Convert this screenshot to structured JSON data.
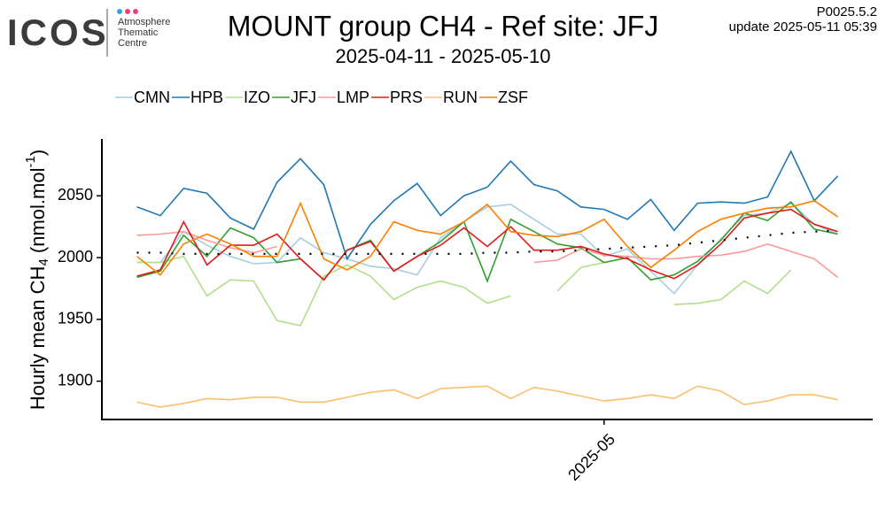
{
  "logo": {
    "name": "ICOS",
    "lines": [
      "Atmosphere",
      "Thematic",
      "Centre"
    ]
  },
  "version": "P0025.5.2",
  "update": "update  2025-05-11 05:39",
  "chart_data": {
    "type": "line",
    "title": "MOUNT group CH4 - Ref site: JFJ",
    "subtitle": "2025-04-11 - 2025-05-10",
    "ylabel": {
      "main": "Hourly mean  CH",
      "sub": "4",
      "unit": " (nmol.mol",
      "sup": "-1",
      "close": ")"
    },
    "x": [
      "2025-04-11",
      "2025-04-12",
      "2025-04-13",
      "2025-04-14",
      "2025-04-15",
      "2025-04-16",
      "2025-04-17",
      "2025-04-18",
      "2025-04-19",
      "2025-04-20",
      "2025-04-21",
      "2025-04-22",
      "2025-04-23",
      "2025-04-24",
      "2025-04-25",
      "2025-04-26",
      "2025-04-27",
      "2025-04-28",
      "2025-04-29",
      "2025-04-30",
      "2025-05-01",
      "2025-05-02",
      "2025-05-03",
      "2025-05-04",
      "2025-05-05",
      "2025-05-06",
      "2025-05-07",
      "2025-05-08",
      "2025-05-09",
      "2025-05-10",
      "2025-05-11"
    ],
    "xlim": [
      "2025-04-09T12:00Z",
      "2025-05-12T12:00Z"
    ],
    "xticks": [
      {
        "value": "2025-05-01",
        "label": "2025-05"
      }
    ],
    "ylim": [
      1869,
      2096
    ],
    "yticks": [
      1900,
      1950,
      2000,
      2050
    ],
    "grid": false,
    "legend": "top",
    "series": [
      {
        "name": "CMN",
        "color": "#a6cee3",
        "values": [
          1996,
          1996,
          2021,
          2010,
          2001,
          1995,
          1996,
          2016,
          2004,
          1999,
          1993,
          1991,
          1986,
          2016,
          2029,
          2041,
          2043,
          2031,
          2019,
          2019,
          2001,
          2007,
          1989,
          1971,
          1994,
          2015,
          2034,
          2036,
          2044,
          2027,
          2019
        ]
      },
      {
        "name": "HPB",
        "color": "#1f78b4",
        "values": [
          2041,
          2034,
          2056,
          2052,
          2032,
          2023,
          2061,
          2080,
          2059,
          1999,
          2027,
          2046,
          2060,
          2034,
          2050,
          2057,
          2078,
          2059,
          2054,
          2041,
          2039,
          2031,
          2047,
          2022,
          2044,
          2045,
          2044,
          2049,
          2086,
          2046,
          2066
        ]
      },
      {
        "name": "IZO",
        "color": "#b2df8a",
        "values": [
          1996,
          1996,
          2001,
          1969,
          1982,
          1981,
          1949,
          1945,
          1985,
          1994,
          1985,
          1966,
          1976,
          1981,
          1976,
          1963,
          1969,
          null,
          1973,
          1992,
          1996,
          null,
          null,
          1962,
          1963,
          1966,
          1981,
          1971,
          1990,
          null,
          null
        ]
      },
      {
        "name": "JFJ",
        "color": "#33a02c",
        "values": [
          1984,
          1989,
          2018,
          2001,
          2024,
          2016,
          1996,
          1999,
          1982,
          2006,
          2014,
          1989,
          2001,
          2013,
          2029,
          1981,
          2031,
          2021,
          2011,
          2008,
          1996,
          2000,
          1982,
          1986,
          1997,
          2014,
          2036,
          2030,
          2045,
          2023,
          2019
        ]
      },
      {
        "name": "LMP",
        "color": "#fb9a99",
        "values": [
          2018,
          2019,
          2021,
          2014,
          2008,
          2004,
          2009,
          null,
          null,
          null,
          null,
          null,
          null,
          null,
          null,
          null,
          null,
          1996,
          1998,
          2007,
          2002,
          2001,
          1999,
          1999,
          2001,
          2002,
          2005,
          2011,
          2005,
          1999,
          1984
        ]
      },
      {
        "name": "PRS",
        "color": "#e31a1c",
        "values": [
          1985,
          1990,
          2029,
          1994,
          2010,
          2010,
          2019,
          1999,
          1982,
          2006,
          2013,
          1989,
          2001,
          2010,
          2024,
          2009,
          2025,
          2006,
          2006,
          2009,
          2003,
          1999,
          1990,
          1983,
          1994,
          2011,
          2032,
          2036,
          2039,
          2027,
          2021
        ]
      },
      {
        "name": "RUN",
        "color": "#fdbf6f",
        "values": [
          1883,
          1879,
          1882,
          1886,
          1885,
          1887,
          1887,
          1883,
          1883,
          1887,
          1891,
          1893,
          1886,
          1894,
          1895,
          1896,
          1886,
          1895,
          1892,
          1888,
          1884,
          1886,
          1889,
          1886,
          1896,
          1892,
          1881,
          1884,
          1889,
          1889,
          1885
        ]
      },
      {
        "name": "ZSF",
        "color": "#ff7f00",
        "values": [
          2001,
          1986,
          2011,
          2019,
          2011,
          2001,
          2001,
          2044,
          1999,
          1990,
          2001,
          2029,
          2022,
          2019,
          2029,
          2043,
          2021,
          2018,
          2017,
          2021,
          2031,
          2009,
          1992,
          2006,
          2021,
          2031,
          2036,
          2040,
          2041,
          2046,
          2033
        ]
      },
      {
        "color": "#000000",
        "style": "dotted",
        "values": [
          2004,
          2004,
          2003,
          2003,
          2003,
          2003,
          2003,
          2003,
          2003,
          2003,
          2003,
          2003,
          2003,
          2003,
          2003,
          2004,
          2004,
          2005,
          2005,
          2006,
          2007,
          2008,
          2009,
          2010,
          2012,
          2014,
          2016,
          2018,
          2020,
          2021,
          2022
        ]
      }
    ]
  }
}
